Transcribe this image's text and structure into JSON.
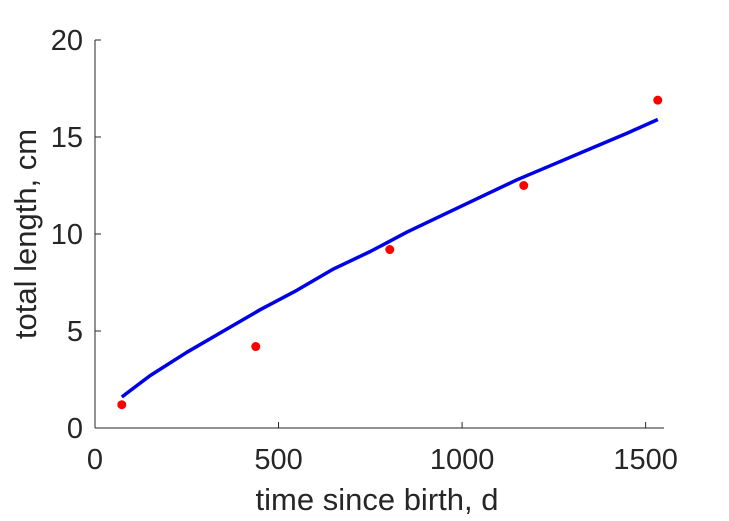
{
  "chart_data": {
    "type": "scatter",
    "title": "",
    "xlabel": "time since birth, d",
    "ylabel": "total length, cm",
    "xlim": [
      0,
      1550
    ],
    "ylim": [
      0,
      20
    ],
    "xticks": [
      0,
      500,
      1000,
      1500
    ],
    "yticks": [
      0,
      5,
      10,
      15,
      20
    ],
    "grid": false,
    "legend": "none",
    "series": [
      {
        "kind": "points",
        "color": "#ff0000",
        "x": [
          73,
          438,
          803,
          1168,
          1533
        ],
        "y": [
          1.2,
          4.2,
          9.2,
          12.5,
          16.9
        ]
      },
      {
        "kind": "line",
        "color": "#0000e6",
        "x": [
          73,
          150,
          250,
          350,
          450,
          550,
          650,
          750,
          850,
          950,
          1050,
          1150,
          1250,
          1350,
          1450,
          1533
        ],
        "y": [
          1.6,
          2.7,
          3.9,
          5.0,
          6.1,
          7.1,
          8.2,
          9.1,
          10.1,
          11.0,
          11.9,
          12.8,
          13.6,
          14.4,
          15.2,
          15.9
        ]
      }
    ]
  }
}
